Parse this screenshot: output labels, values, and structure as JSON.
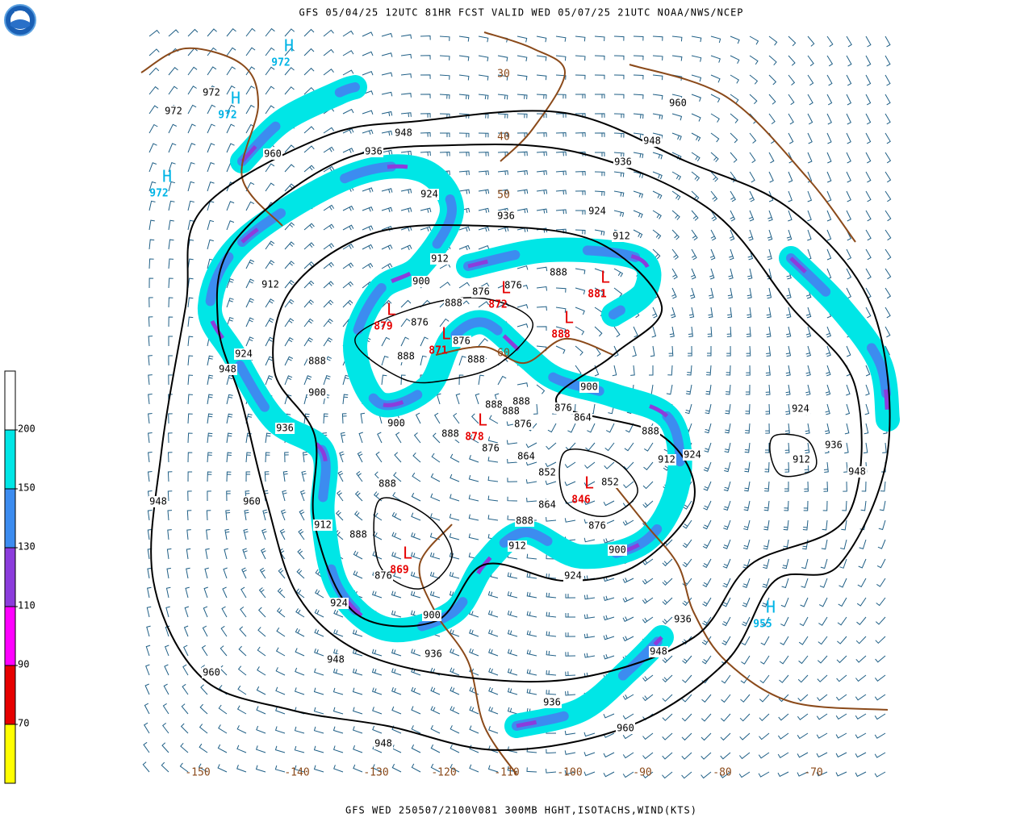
{
  "header": {
    "logo": "NOAA",
    "title": "GFS 05/04/25 12UTC 81HR FCST VALID WED 05/07/25 21UTC NOAA/NWS/NCEP"
  },
  "footer": "GFS WED 250507/2100V081 300MB HGHT,ISOTACHS,WIND(KTS)",
  "colorbar": {
    "colors": [
      "#ffffff",
      "#00e6e6",
      "#3c8cf0",
      "#8c3cdc",
      "#ff00ff",
      "#e60000",
      "#ffff00"
    ],
    "ticks": [
      70,
      90,
      110,
      130,
      150,
      200
    ]
  },
  "map": {
    "height_labels": [
      "972",
      "972",
      "960",
      "948",
      "936",
      "948",
      "936",
      "960",
      "924",
      "936",
      "924",
      "912",
      "912",
      "900",
      "888",
      "876",
      "876",
      "888",
      "876",
      "912",
      "924",
      "948",
      "888",
      "888",
      "876",
      "888",
      "900",
      "888",
      "888",
      "888",
      "876",
      "900",
      "888",
      "876",
      "936",
      "960",
      "948",
      "900",
      "876",
      "864",
      "888",
      "924",
      "912",
      "924",
      "936",
      "912",
      "948",
      "864",
      "852",
      "852",
      "864",
      "888",
      "876",
      "912",
      "900",
      "888",
      "888",
      "912",
      "876",
      "924",
      "924",
      "900",
      "936",
      "948",
      "936",
      "948",
      "960",
      "936",
      "960",
      "948"
    ],
    "highs": [
      {
        "letter": "H",
        "value": "972"
      },
      {
        "letter": "H",
        "value": "972"
      },
      {
        "letter": "H",
        "value": "972"
      },
      {
        "letter": "H",
        "value": "955"
      }
    ],
    "lows": [
      {
        "letter": "L",
        "value": "881"
      },
      {
        "letter": "L",
        "value": "872"
      },
      {
        "letter": "L",
        "value": "879"
      },
      {
        "letter": "L",
        "value": "871"
      },
      {
        "letter": "L",
        "value": "888"
      },
      {
        "letter": "L",
        "value": "878"
      },
      {
        "letter": "L",
        "value": "846"
      },
      {
        "letter": "L",
        "value": "869"
      }
    ],
    "longitude_labels": [
      "-150",
      "-140",
      "-130",
      "-120",
      "-110",
      "-100",
      "-90",
      "-80",
      "-70"
    ],
    "latitude_labels": [
      "30",
      "40",
      "50",
      "60"
    ]
  }
}
